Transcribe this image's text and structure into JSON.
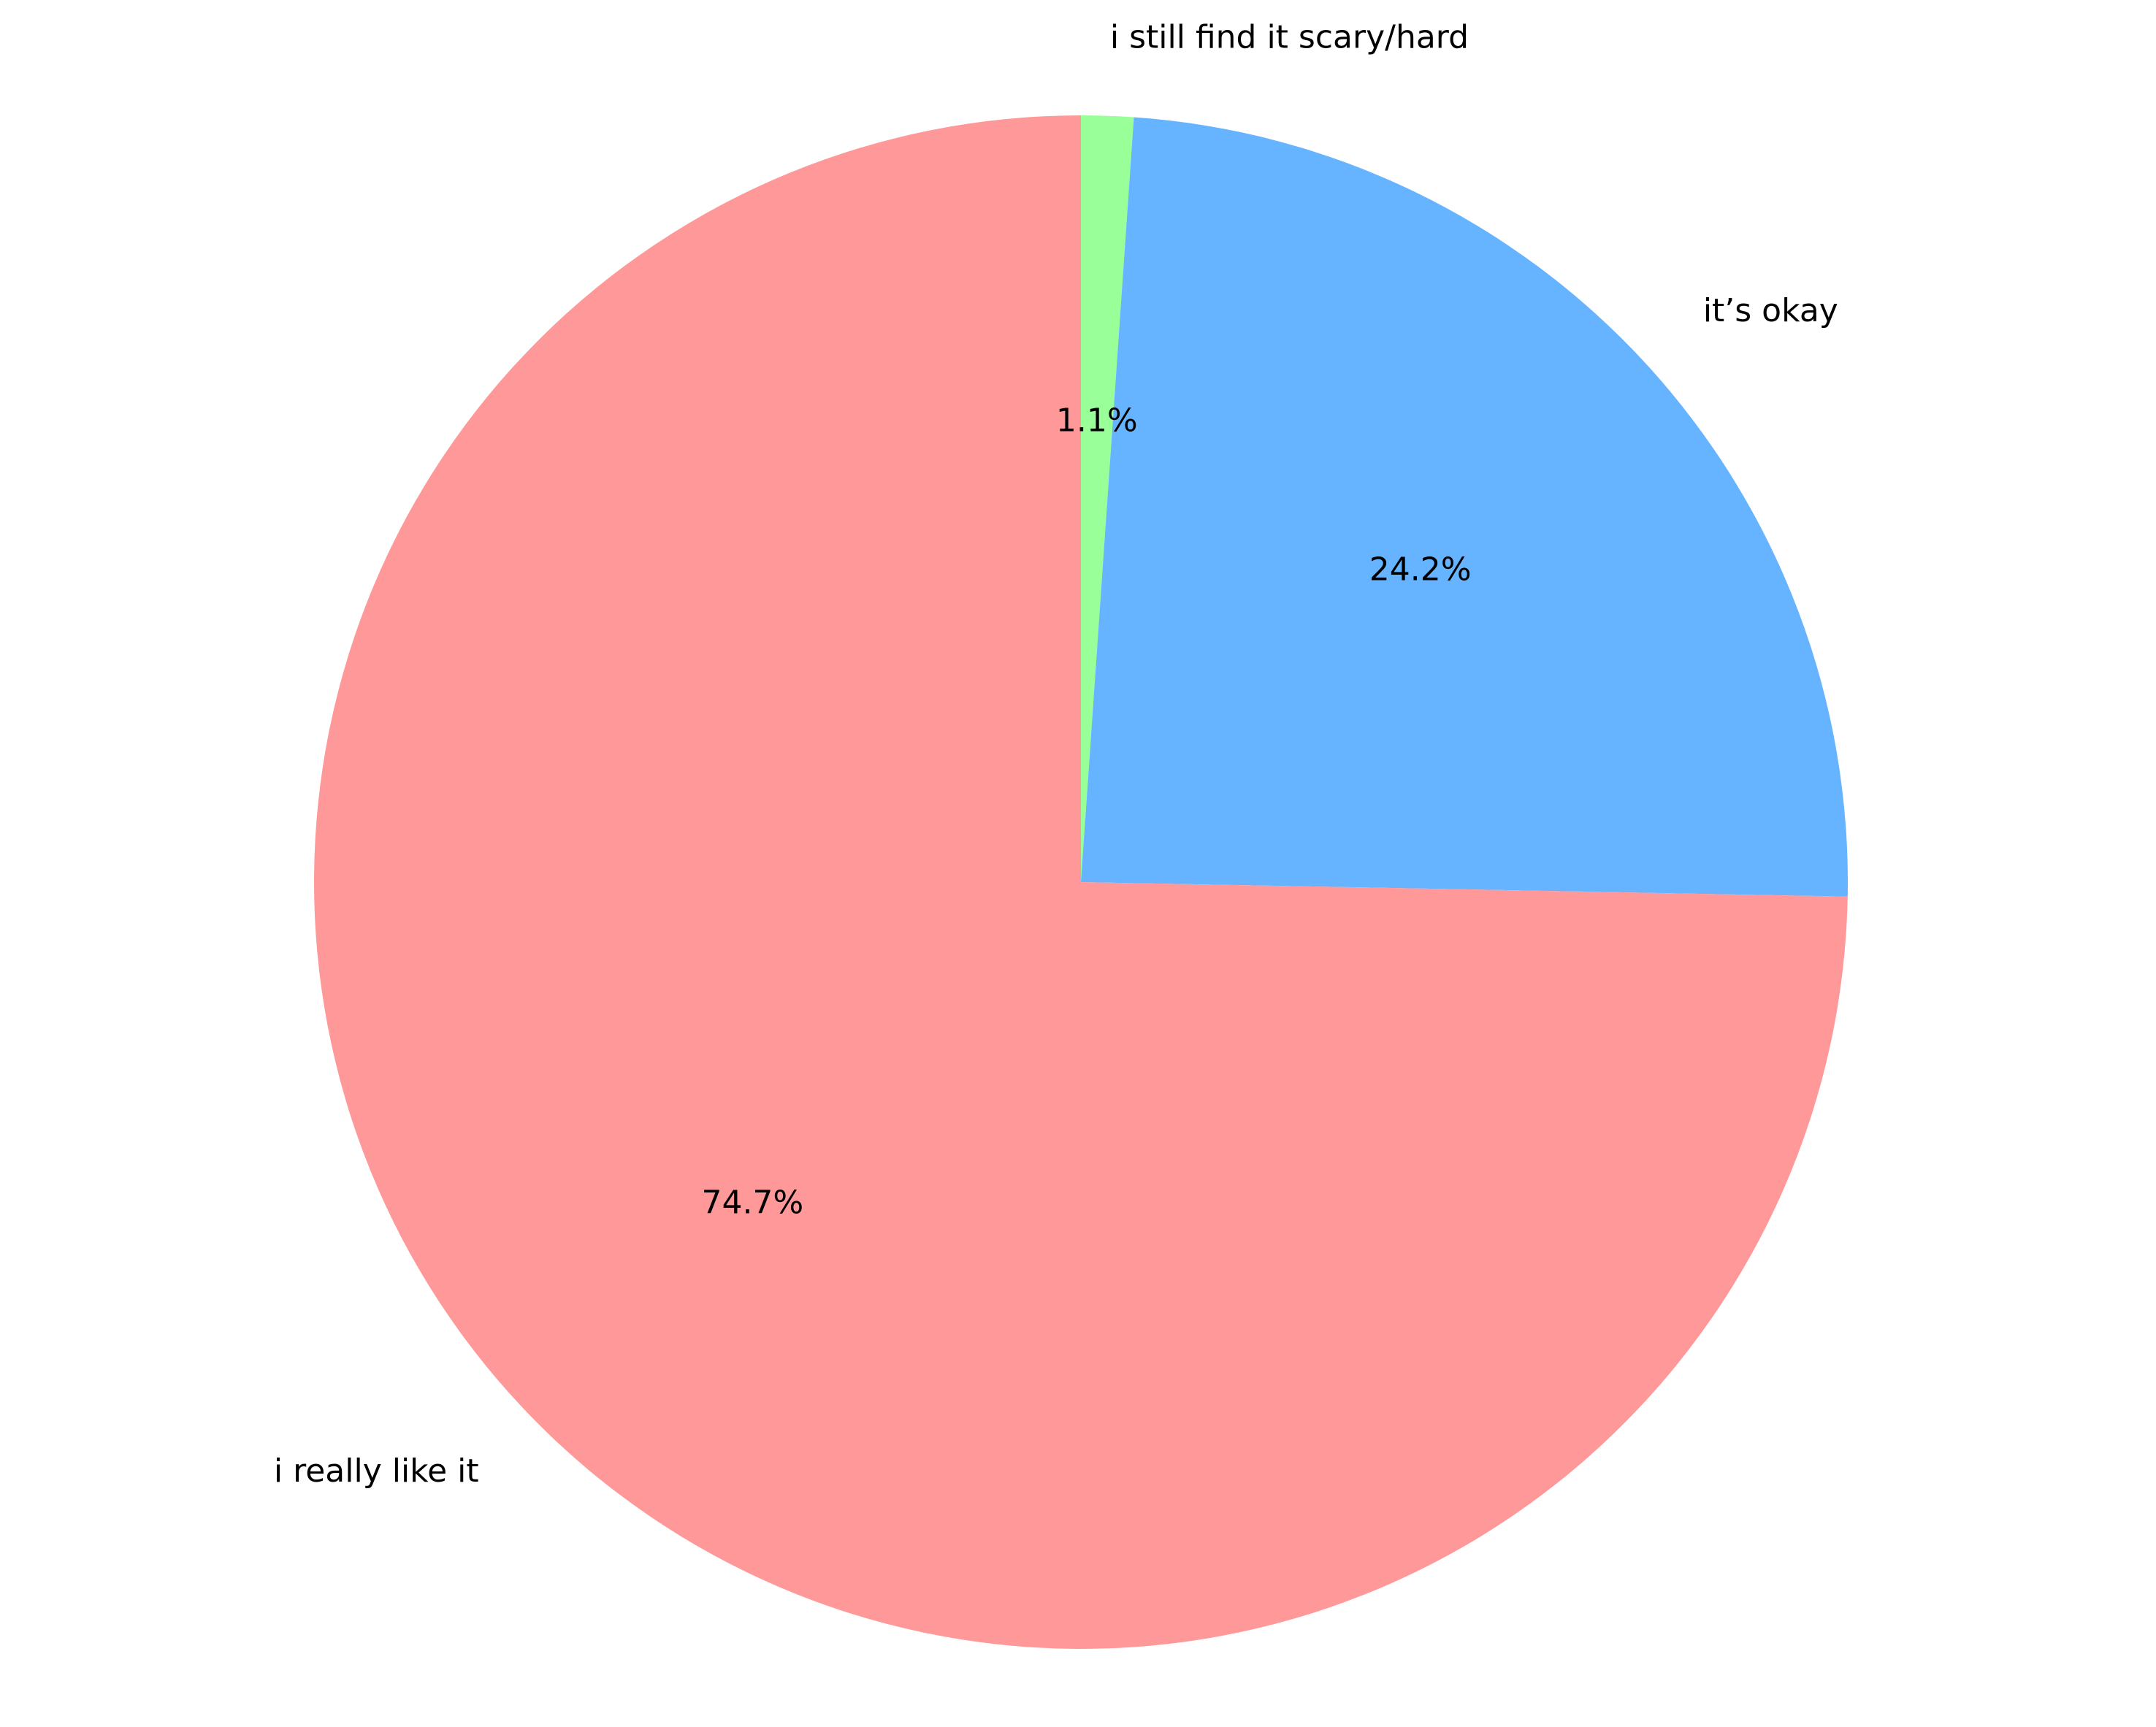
{
  "chart_data": {
    "type": "pie",
    "title": "",
    "start_angle_deg": 90,
    "direction": "clockwise",
    "slices": [
      {
        "label": "i still find it scary/hard",
        "value": 1.1,
        "pct_label": "1.1%",
        "color": "#99ff99"
      },
      {
        "label": "it’s okay",
        "value": 24.2,
        "pct_label": "24.2%",
        "color": "#66b3ff"
      },
      {
        "label": "i really like it",
        "value": 74.7,
        "pct_label": "74.7%",
        "color": "#ff9999"
      }
    ]
  }
}
